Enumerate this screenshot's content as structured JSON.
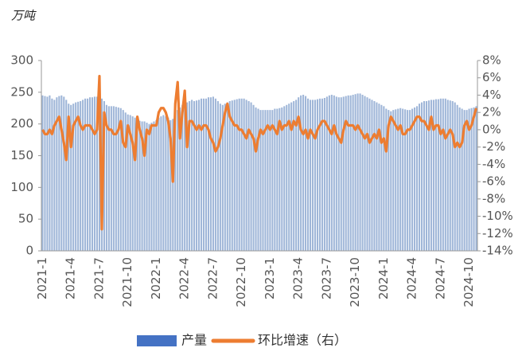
{
  "chart_data": {
    "type": "bar-line",
    "unit_label": "万吨",
    "categories": [
      "2021-1",
      null,
      null,
      null,
      null,
      null,
      null,
      null,
      null,
      null,
      null,
      null,
      "2021-4",
      null,
      null,
      null,
      null,
      null,
      null,
      null,
      null,
      null,
      null,
      null,
      "2021-7",
      null,
      null,
      null,
      null,
      null,
      null,
      null,
      null,
      null,
      null,
      null,
      "2021-10",
      null,
      null,
      null,
      null,
      null,
      null,
      null,
      null,
      null,
      null,
      null,
      "2022-1",
      null,
      null,
      null,
      null,
      null,
      null,
      null,
      null,
      null,
      null,
      null,
      "2022-4",
      null,
      null,
      null,
      null,
      null,
      null,
      null,
      null,
      null,
      null,
      null,
      "2022-7",
      null,
      null,
      null,
      null,
      null,
      null,
      null,
      null,
      null,
      null,
      null,
      "2022-10",
      null,
      null,
      null,
      null,
      null,
      null,
      null,
      null,
      null,
      null,
      null,
      "2023-1",
      null,
      null,
      null,
      null,
      null,
      null,
      null,
      null,
      null,
      null,
      null,
      "2023-4",
      null,
      null,
      null,
      null,
      null,
      null,
      null,
      null,
      null,
      null,
      null,
      "2023-7",
      null,
      null,
      null,
      null,
      null,
      null,
      null,
      null,
      null,
      null,
      null,
      "2023-10",
      null,
      null,
      null,
      null,
      null,
      null,
      null,
      null,
      null,
      null,
      null,
      "2024-1",
      null,
      null,
      null,
      null,
      null,
      null,
      null,
      null,
      null,
      null,
      null,
      "2024-4",
      null,
      null,
      null,
      null,
      null,
      null,
      null,
      null,
      null,
      null,
      null,
      "2024-7",
      null,
      null,
      null,
      null,
      null,
      null,
      null,
      null,
      null,
      null,
      null,
      "2024-10",
      null,
      null,
      null
    ],
    "series": [
      {
        "name": "产量",
        "type": "bar",
        "axis": "y",
        "color": "#9fb6d8",
        "legend_color": "#4472c4",
        "values": [
          245,
          244,
          243,
          245,
          240,
          238,
          242,
          244,
          245,
          243,
          238,
          232,
          230,
          232,
          234,
          235,
          236,
          238,
          240,
          240,
          242,
          242,
          243,
          243,
          242,
          240,
          236,
          230,
          228,
          228,
          228,
          227,
          226,
          225,
          222,
          218,
          215,
          214,
          212,
          210,
          206,
          205,
          204,
          204,
          202,
          200,
          202,
          204,
          206,
          210,
          212,
          214,
          212,
          210,
          206,
          208,
          215,
          222,
          226,
          230,
          232,
          234,
          236,
          238,
          236,
          237,
          238,
          240,
          240,
          240,
          242,
          242,
          243,
          240,
          236,
          232,
          230,
          232,
          234,
          236,
          237,
          238,
          239,
          240,
          240,
          240,
          238,
          236,
          234,
          230,
          226,
          224,
          222,
          222,
          222,
          222,
          222,
          222,
          224,
          224,
          225,
          226,
          228,
          230,
          232,
          234,
          236,
          238,
          242,
          245,
          246,
          244,
          240,
          238,
          238,
          238,
          239,
          240,
          240,
          241,
          243,
          245,
          246,
          245,
          243,
          242,
          242,
          243,
          244,
          245,
          245,
          246,
          247,
          248,
          248,
          246,
          244,
          242,
          240,
          238,
          236,
          234,
          232,
          230,
          228,
          224,
          222,
          220,
          222,
          223,
          224,
          225,
          224,
          223,
          222,
          222,
          224,
          226,
          228,
          232,
          234,
          236,
          236,
          237,
          238,
          238,
          239,
          239,
          240,
          240,
          240,
          238,
          237,
          236,
          234,
          230,
          226,
          224,
          222,
          222,
          224,
          225,
          226,
          228
        ]
      },
      {
        "name": "环比增速（右）",
        "type": "line",
        "axis": "y2",
        "color": "#ed7d31",
        "values": [
          0,
          -0.5,
          -0.5,
          0,
          -0.5,
          0.5,
          1,
          1.5,
          0,
          -1.5,
          -3.5,
          1.5,
          -2,
          0.5,
          1,
          1.5,
          0.5,
          0,
          0.5,
          0.5,
          0.5,
          0,
          -0.5,
          0,
          6.2,
          -11.5,
          2,
          0.5,
          0,
          0,
          -0.5,
          -0.5,
          0,
          1,
          -1.5,
          -2,
          0.5,
          -0.5,
          -1.5,
          -3.5,
          1.5,
          0,
          -1,
          -3,
          0,
          -0.5,
          0.5,
          0.5,
          0.5,
          2,
          2.5,
          2.5,
          2,
          1,
          -1,
          -6,
          3,
          5.5,
          -1,
          2,
          4.5,
          -2,
          1,
          1,
          0.5,
          0,
          0.5,
          0,
          0.5,
          0.5,
          0,
          -1,
          -1.5,
          -2.5,
          -2,
          -1,
          0.5,
          2,
          3,
          1.5,
          1,
          0.5,
          0.5,
          0,
          0,
          -0.5,
          -1,
          0,
          -0.5,
          -1,
          -2.5,
          -1,
          0,
          -0.5,
          0,
          0.5,
          0,
          0.5,
          0,
          -0.5,
          1,
          0,
          0.5,
          0.5,
          1,
          0,
          1,
          0.5,
          1.5,
          0,
          -0.5,
          0,
          -1,
          0,
          -0.5,
          -1,
          0,
          0.5,
          1,
          1,
          0.5,
          0,
          -0.5,
          0.5,
          -0.5,
          -1,
          -1.5,
          0,
          1,
          0.5,
          0.5,
          0.5,
          0,
          0.5,
          0,
          -0.5,
          -1,
          -0.5,
          -1.5,
          -1,
          -0.5,
          -1,
          0,
          -1.5,
          -1,
          -2.5,
          0.5,
          1.5,
          1,
          0.5,
          0,
          0.5,
          -0.5,
          -0.5,
          0,
          0,
          0.5,
          1,
          1.5,
          1.5,
          1,
          1,
          0.5,
          0,
          1.5,
          0,
          0.5,
          0.5,
          -0.5,
          0,
          -1,
          -0.5,
          0,
          -0.5,
          -2,
          -1.5,
          -2,
          -1.5,
          0.5,
          1,
          0,
          0.5,
          1.5,
          2.5
        ]
      }
    ],
    "ylim": [
      0,
      300
    ],
    "yticks": [
      0,
      50,
      100,
      150,
      200,
      250,
      300
    ],
    "y2lim": [
      -14,
      8
    ],
    "y2ticks": [
      {
        "value": -14,
        "label": "-14%"
      },
      {
        "value": -12,
        "label": "-12%"
      },
      {
        "value": -10,
        "label": "-10%"
      },
      {
        "value": -8,
        "label": "-8%"
      },
      {
        "value": -6,
        "label": "-6%"
      },
      {
        "value": -4,
        "label": "-4%"
      },
      {
        "value": -2,
        "label": "-2%"
      },
      {
        "value": 0,
        "label": "0%"
      },
      {
        "value": 2,
        "label": "2%"
      },
      {
        "value": 4,
        "label": "4%"
      },
      {
        "value": 6,
        "label": "6%"
      },
      {
        "value": 8,
        "label": "8%"
      }
    ],
    "legend": "bottom"
  }
}
